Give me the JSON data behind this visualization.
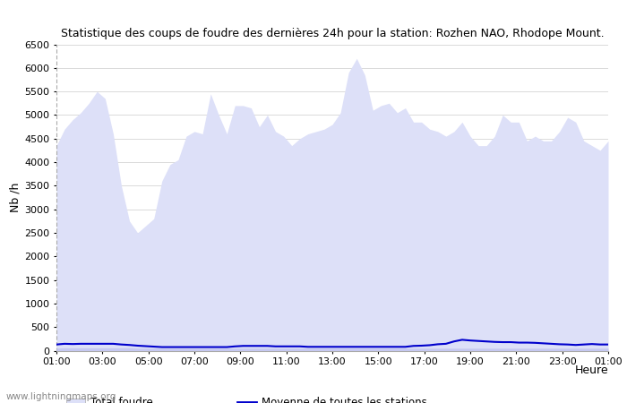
{
  "title": "Statistique des coups de foudre des dernières 24h pour la station: Rozhen NAO, Rhodope Mount.",
  "ylabel": "Nb /h",
  "xlabel": "Heure",
  "watermark": "www.lightningmaps.org",
  "ylim": [
    0,
    6500
  ],
  "yticks": [
    0,
    500,
    1000,
    1500,
    2000,
    2500,
    3000,
    3500,
    4000,
    4500,
    5000,
    5500,
    6000,
    6500
  ],
  "xtick_labels": [
    "01:00",
    "03:00",
    "05:00",
    "07:00",
    "09:00",
    "11:00",
    "13:00",
    "15:00",
    "17:00",
    "19:00",
    "21:00",
    "23:00",
    "01:00"
  ],
  "bg_color": "#ffffff",
  "plot_bg_color": "#ffffff",
  "grid_color": "#cccccc",
  "fill_total_color": "#dde0f8",
  "fill_station_color": "#c5c8f0",
  "line_mean_color": "#0000cc",
  "total_foudre": [
    4350,
    4700,
    4900,
    5050,
    5250,
    5500,
    5350,
    4600,
    3500,
    2750,
    2500,
    2650,
    2800,
    3600,
    3950,
    4050,
    4550,
    4650,
    4600,
    5450,
    5000,
    4600,
    5200,
    5200,
    5150,
    4750,
    5000,
    4650,
    4550,
    4350,
    4500,
    4600,
    4650,
    4700,
    4800,
    5050,
    5900,
    6200,
    5850,
    5100,
    5200,
    5250,
    5050,
    5150,
    4850,
    4850,
    4700,
    4650,
    4550,
    4650,
    4850,
    4550,
    4350,
    4350,
    4550,
    5000,
    4850,
    4850,
    4450,
    4550,
    4450,
    4450,
    4650,
    4950,
    4850,
    4450,
    4350,
    4250,
    4450
  ],
  "station_foudre": [
    50,
    60,
    60,
    60,
    60,
    60,
    60,
    60,
    60,
    60,
    50,
    50,
    50,
    50,
    50,
    50,
    50,
    50,
    50,
    50,
    50,
    50,
    50,
    50,
    50,
    50,
    50,
    50,
    50,
    50,
    50,
    50,
    50,
    50,
    50,
    50,
    50,
    50,
    50,
    50,
    50,
    50,
    50,
    50,
    50,
    50,
    50,
    50,
    50,
    50,
    50,
    50,
    50,
    50,
    50,
    50,
    50,
    50,
    50,
    50,
    50,
    50,
    50,
    50,
    50,
    50,
    50,
    50,
    50
  ],
  "mean_line": [
    130,
    145,
    140,
    145,
    145,
    145,
    145,
    145,
    130,
    120,
    105,
    95,
    85,
    75,
    75,
    75,
    75,
    75,
    75,
    75,
    75,
    75,
    90,
    100,
    100,
    100,
    100,
    90,
    90,
    90,
    90,
    80,
    80,
    80,
    80,
    80,
    80,
    80,
    80,
    80,
    80,
    80,
    80,
    80,
    100,
    105,
    115,
    135,
    145,
    195,
    230,
    215,
    205,
    195,
    185,
    180,
    180,
    170,
    170,
    165,
    155,
    145,
    135,
    130,
    120,
    130,
    140,
    130,
    130
  ]
}
